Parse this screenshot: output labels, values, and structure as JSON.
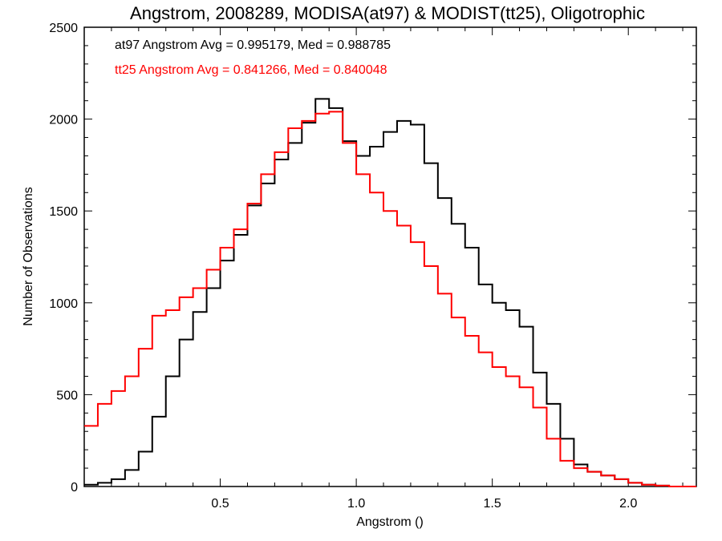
{
  "chart_data": {
    "type": "line",
    "title": "Angstrom, 2008289, MODISA(at97) & MODIST(tt25), Oligotrophic",
    "xlabel": "Angstrom ()",
    "ylabel": "Number of Observations",
    "xlim": [
      0.0,
      2.25
    ],
    "ylim": [
      0,
      2500
    ],
    "x_ticks": [
      0.5,
      1.0,
      1.5,
      2.0
    ],
    "x_tick_labels": [
      "0.5",
      "1.0",
      "1.5",
      "2.0"
    ],
    "y_ticks": [
      0,
      500,
      1000,
      1500,
      2000,
      2500
    ],
    "y_tick_labels": [
      "0",
      "500",
      "1000",
      "1500",
      "2000",
      "2500"
    ],
    "grid": false,
    "legend_placement": "top-left",
    "annotations": [
      {
        "text": "at97 Angstrom Avg = 0.995179, Med = 0.988785",
        "color": "#000000"
      },
      {
        "text": "tt25 Angstrom Avg = 0.841266, Med = 0.840048",
        "color": "#ff0000"
      }
    ],
    "series": [
      {
        "color": "#000000",
        "x": [
          0.0,
          0.05,
          0.1,
          0.15,
          0.2,
          0.25,
          0.3,
          0.35,
          0.4,
          0.45,
          0.5,
          0.55,
          0.6,
          0.65,
          0.7,
          0.75,
          0.8,
          0.85,
          0.9,
          0.95,
          1.0,
          1.05,
          1.1,
          1.15,
          1.2,
          1.25,
          1.3,
          1.35,
          1.4,
          1.45,
          1.5,
          1.55,
          1.6,
          1.65,
          1.7,
          1.75,
          1.8,
          1.85,
          1.9,
          1.95,
          2.0,
          2.05,
          2.1,
          2.15,
          2.2,
          2.25
        ],
        "y": [
          10,
          20,
          40,
          90,
          190,
          380,
          600,
          800,
          950,
          1080,
          1230,
          1370,
          1530,
          1650,
          1780,
          1870,
          1980,
          2110,
          2060,
          1880,
          1800,
          1850,
          1930,
          1990,
          1970,
          1760,
          1570,
          1430,
          1300,
          1100,
          1000,
          960,
          870,
          620,
          450,
          260,
          120,
          80,
          60,
          40,
          20,
          10,
          5,
          0,
          0,
          0
        ]
      },
      {
        "color": "#ff0000",
        "x": [
          0.0,
          0.05,
          0.1,
          0.15,
          0.2,
          0.25,
          0.3,
          0.35,
          0.4,
          0.45,
          0.5,
          0.55,
          0.6,
          0.65,
          0.7,
          0.75,
          0.8,
          0.85,
          0.9,
          0.95,
          1.0,
          1.05,
          1.1,
          1.15,
          1.2,
          1.25,
          1.3,
          1.35,
          1.4,
          1.45,
          1.5,
          1.55,
          1.6,
          1.65,
          1.7,
          1.75,
          1.8,
          1.85,
          1.9,
          1.95,
          2.0,
          2.05,
          2.1,
          2.15,
          2.2,
          2.25
        ],
        "y": [
          330,
          450,
          520,
          600,
          750,
          930,
          960,
          1030,
          1080,
          1180,
          1300,
          1400,
          1540,
          1700,
          1820,
          1950,
          1990,
          2030,
          2040,
          1870,
          1700,
          1600,
          1500,
          1420,
          1330,
          1200,
          1050,
          920,
          820,
          730,
          650,
          600,
          540,
          430,
          260,
          140,
          100,
          80,
          60,
          40,
          20,
          10,
          5,
          0,
          0,
          0
        ]
      }
    ]
  }
}
